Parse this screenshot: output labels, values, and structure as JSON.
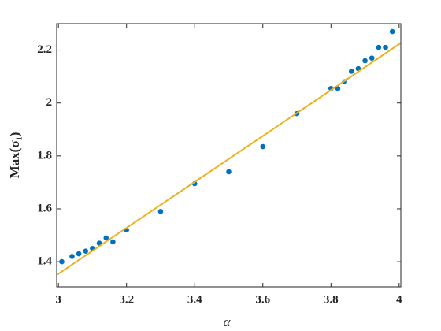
{
  "chart_data": {
    "type": "scatter",
    "x_label": "α",
    "y_label": "Max(σ₁)",
    "xlim": [
      2.995,
      4.005
    ],
    "ylim": [
      1.305,
      2.3
    ],
    "xticks": [
      3,
      3.2,
      3.4,
      3.6,
      3.8,
      4
    ],
    "yticks": [
      1.4,
      1.6,
      1.8,
      2,
      2.2
    ],
    "series": [
      {
        "type": "scatter",
        "color": "#0072bd",
        "x": [
          3.01,
          3.04,
          3.06,
          3.08,
          3.1,
          3.12,
          3.14,
          3.16,
          3.2,
          3.3,
          3.4,
          3.5,
          3.6,
          3.7,
          3.8,
          3.82,
          3.84,
          3.86,
          3.88,
          3.9,
          3.92,
          3.94,
          3.96,
          3.98
        ],
        "values": [
          1.4,
          1.42,
          1.43,
          1.44,
          1.45,
          1.47,
          1.49,
          1.475,
          1.52,
          1.59,
          1.695,
          1.74,
          1.835,
          1.96,
          2.055,
          2.055,
          2.08,
          2.12,
          2.13,
          2.16,
          2.17,
          2.21,
          2.21,
          2.27
        ]
      },
      {
        "type": "line",
        "color": "#edb120",
        "x": [
          2.995,
          4.005
        ],
        "values": [
          1.35,
          2.227
        ]
      }
    ]
  }
}
